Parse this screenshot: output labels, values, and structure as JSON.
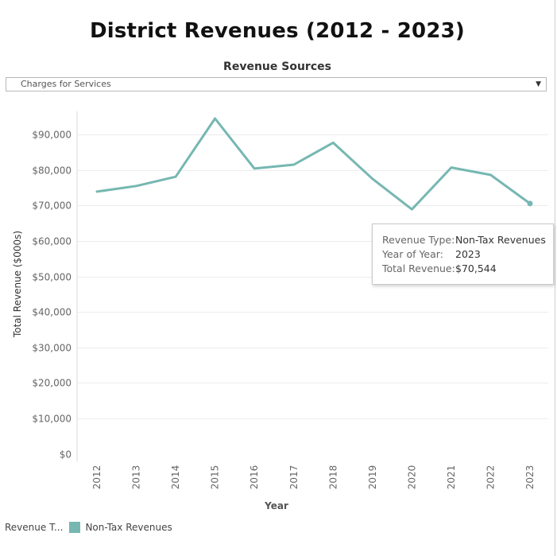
{
  "page": {
    "title": "District Revenues (2012 - 2023)"
  },
  "filter": {
    "title": "Revenue Sources",
    "selected": "Charges for Services"
  },
  "tooltip": {
    "rows": [
      {
        "key": "Revenue Type:",
        "value": "Non-Tax Revenues"
      },
      {
        "key": "Year of Year:",
        "value": "2023"
      },
      {
        "key": "Total Revenue:",
        "value": "$70,544"
      }
    ]
  },
  "legend": {
    "title": "Revenue T...",
    "items": [
      {
        "label": "Non-Tax Revenues",
        "color": "#76b7b2"
      }
    ]
  },
  "colors": {
    "series": "#76b7b2",
    "grid": "#ececec",
    "tick_text": "#666666"
  },
  "chart_data": {
    "type": "line",
    "title": "District Revenues (2012 - 2023)",
    "xlabel": "Year",
    "ylabel": "Total Revenue ($000s)",
    "x": [
      "2012",
      "2013",
      "2014",
      "2015",
      "2016",
      "2017",
      "2018",
      "2019",
      "2020",
      "2021",
      "2022",
      "2023"
    ],
    "series": [
      {
        "name": "Non-Tax Revenues",
        "values": [
          73900,
          75500,
          78100,
          94500,
          80400,
          81500,
          87700,
          77500,
          68900,
          80700,
          78600,
          70544
        ]
      }
    ],
    "ylim": [
      0,
      100000
    ],
    "yticks": [
      0,
      10000,
      20000,
      30000,
      40000,
      50000,
      60000,
      70000,
      80000,
      90000
    ],
    "ytick_labels": [
      "$0",
      "$10,000",
      "$20,000",
      "$30,000",
      "$40,000",
      "$50,000",
      "$60,000",
      "$70,000",
      "$80,000",
      "$90,000"
    ],
    "grid": true,
    "legend_position": "bottom-left",
    "highlighted_point": "2023"
  }
}
